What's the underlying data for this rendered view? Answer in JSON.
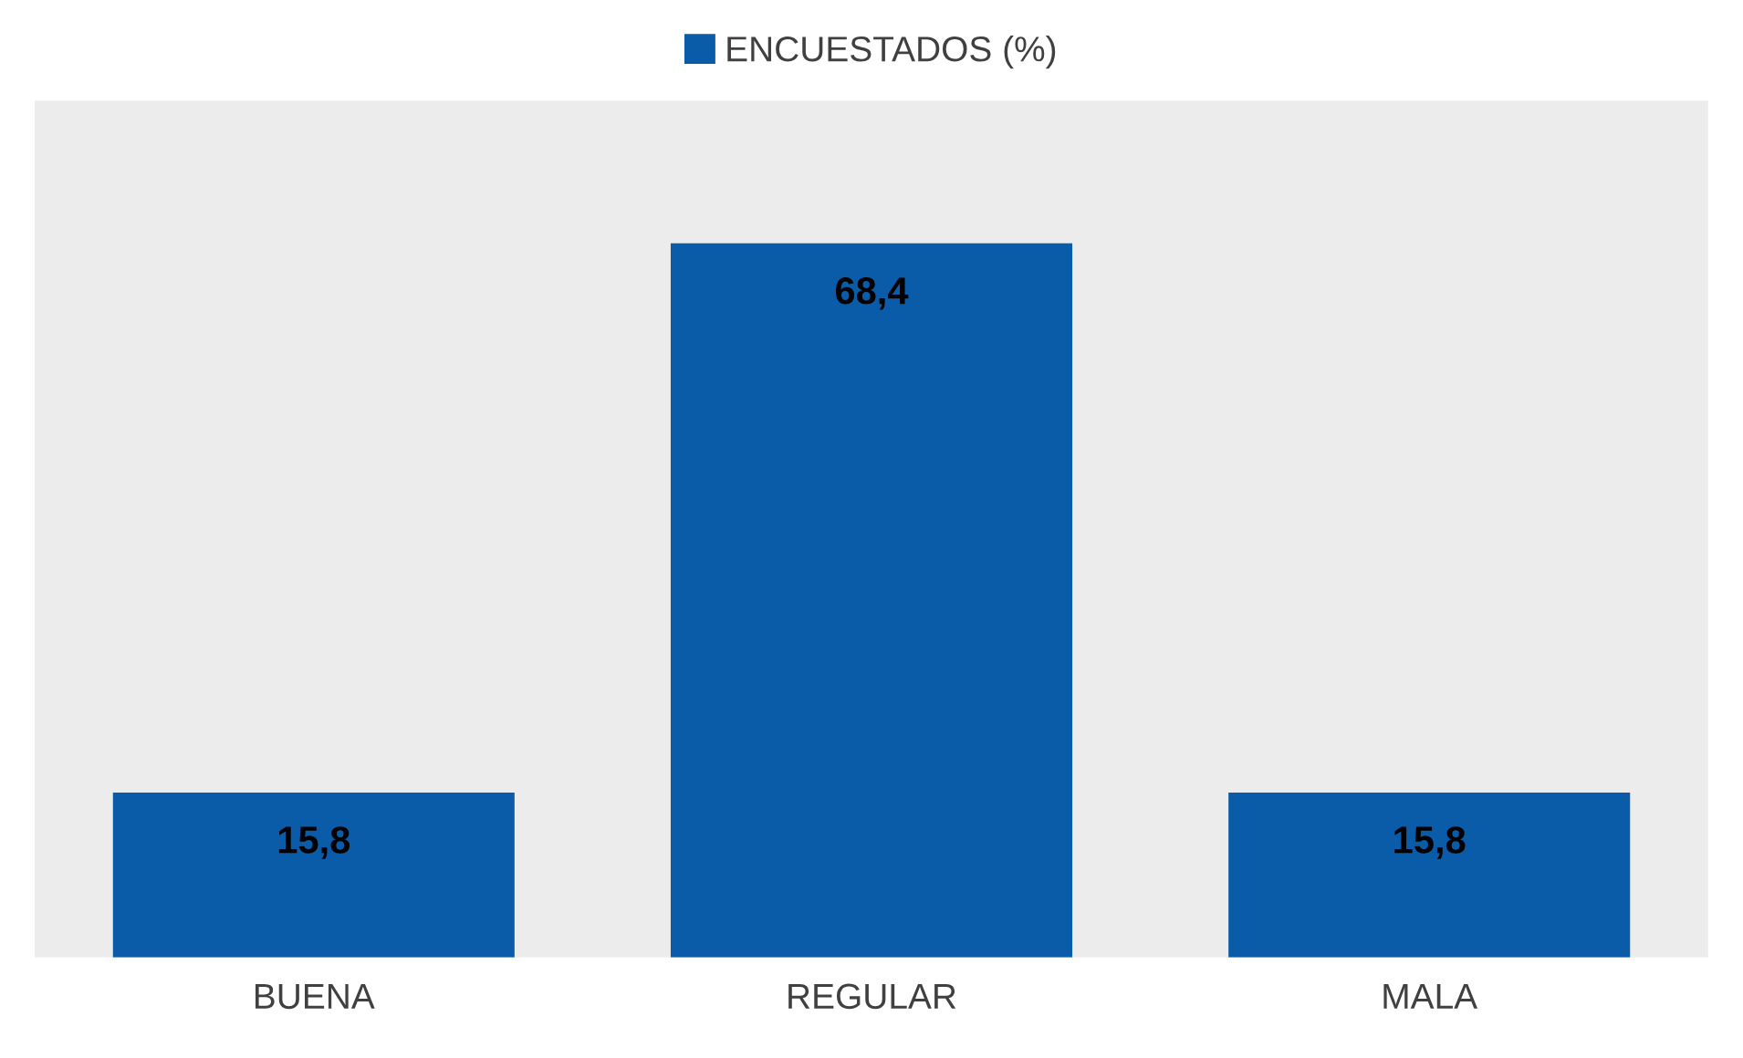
{
  "chart_data": {
    "type": "bar",
    "categories": [
      "BUENA",
      "REGULAR",
      "MALA"
    ],
    "series": [
      {
        "name": "ENCUESTADOS (%)",
        "color": "#0b5ca8",
        "values": [
          15.8,
          68.4,
          15.8
        ],
        "value_labels": [
          "15,8",
          "68,4",
          "15,8"
        ]
      }
    ],
    "legend": "top",
    "grid": false
  }
}
